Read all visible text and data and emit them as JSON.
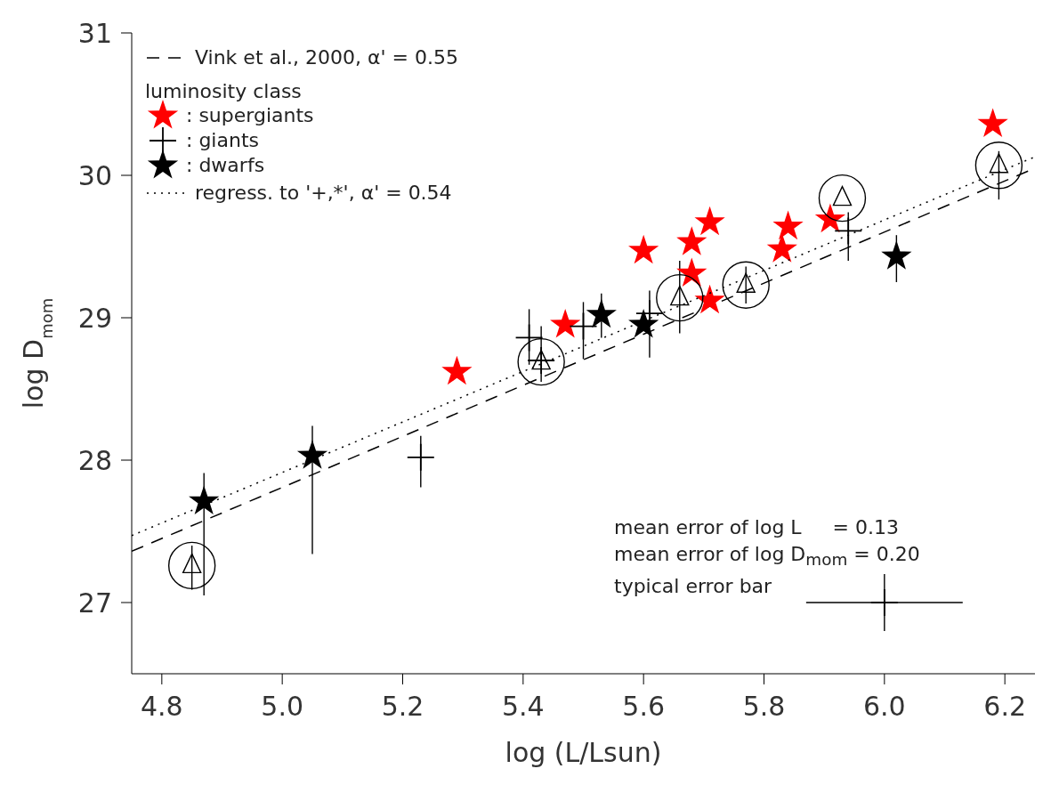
{
  "chart_data": {
    "type": "scatter",
    "xlabel": "log (L/Lsun)",
    "ylabel": "log D$_{mom}$",
    "legend_title": "luminosity class",
    "legend": "top left",
    "grid": false,
    "xlim": [
      4.75,
      6.25
    ],
    "xticks": [
      4.8,
      {
        "value": 5,
        "label": "5.0"
      },
      5.2,
      5.4,
      5.6,
      5.8,
      {
        "value": 6,
        "label": "6.0"
      },
      6.2
    ],
    "ylim": [
      26.5,
      31
    ],
    "yticks": [
      27,
      28,
      29,
      30,
      31
    ],
    "series": [
      {
        "name": "Vink et al., 2000, α' = 0.55",
        "type": "line",
        "line_style": "dashed",
        "color": "#000000",
        "x": [
          4.75,
          6.25
        ],
        "values": [
          27.36,
          30.05
        ]
      },
      {
        "name": ": supergiants",
        "marker": "star",
        "color": "#ff0000",
        "x": [
          5.29,
          5.47,
          5.6,
          5.68,
          5.71,
          5.68,
          5.71,
          5.84,
          5.83,
          5.91,
          6.18
        ],
        "values": [
          28.62,
          28.95,
          29.47,
          29.53,
          29.67,
          29.31,
          29.12,
          29.64,
          29.48,
          29.69,
          30.36
        ]
      },
      {
        "name": ": giants",
        "marker": "cross",
        "color": "#000000",
        "x": [
          5.41,
          5.43,
          5.5,
          5.61,
          5.94,
          5.23
        ],
        "values": [
          28.86,
          28.7,
          28.94,
          29.03,
          29.61,
          28.02
        ],
        "errors": [
          [
            28.67,
            29.06
          ],
          [
            28.55,
            28.94
          ],
          [
            28.71,
            29.11
          ],
          [
            28.72,
            29.19
          ],
          [
            29.4,
            29.74
          ],
          [
            27.81,
            28.17
          ]
        ]
      },
      {
        "name": ": dwarfs",
        "marker": "star",
        "color": "#000000",
        "x": [
          4.87,
          5.05,
          5.53,
          5.6,
          6.02
        ],
        "values": [
          27.71,
          28.03,
          29.02,
          28.95,
          29.43
        ],
        "errors": [
          [
            27.05,
            27.91
          ],
          [
            27.34,
            28.24
          ],
          [
            28.86,
            29.17
          ],
          null,
          [
            29.25,
            29.58
          ]
        ]
      },
      {
        "marker": "circle",
        "color": "#000000",
        "x": [
          4.85,
          5.43,
          5.66,
          5.77,
          5.93,
          6.19
        ],
        "values": [
          27.26,
          28.69,
          29.14,
          29.23,
          29.84,
          30.07
        ],
        "errors": [
          [
            27.09,
            27.4
          ],
          null,
          [
            28.89,
            29.4
          ],
          [
            29.1,
            29.36
          ],
          null,
          [
            29.83,
            30.17
          ]
        ]
      },
      {
        "marker": "cross",
        "color": "#000000",
        "x": [
          6.0
        ],
        "values": [
          27.0
        ],
        "errors": [
          0.2
        ],
        "xerrors": [
          0.13
        ]
      },
      {
        "name": "regress. to '+,*', α' = 0.54",
        "type": "line",
        "line_style": "dotted",
        "color": "#000000",
        "x": [
          4.75,
          6.25
        ],
        "values": [
          27.47,
          30.13
        ]
      }
    ],
    "annotations": [
      "mean error of log L     = 0.13",
      "mean error of log D$_{mom}$ = 0.20",
      "typical error bar"
    ]
  }
}
